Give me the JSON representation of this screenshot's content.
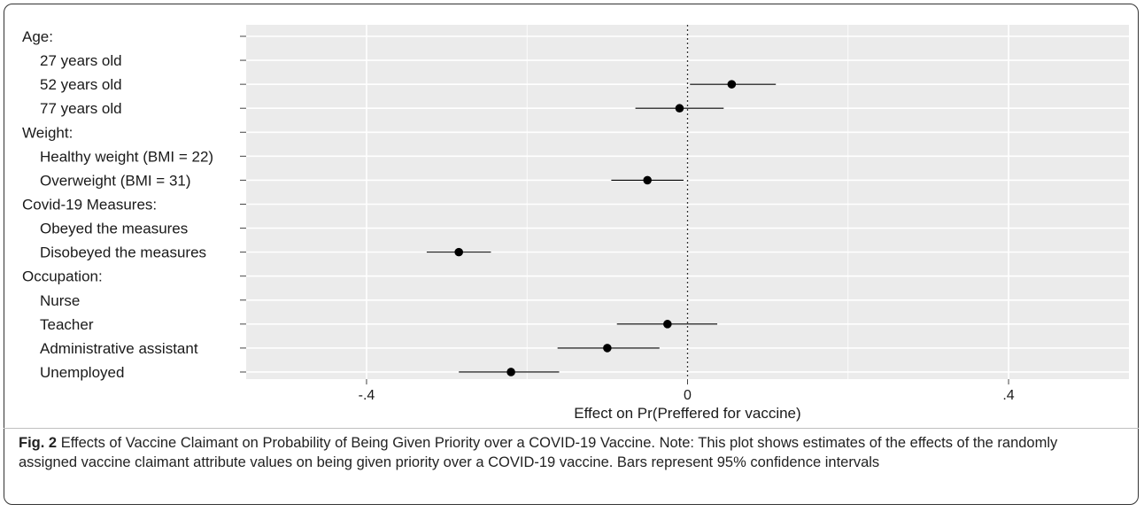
{
  "chart_data": {
    "type": "scatter",
    "subtype": "coefficient plot with 95% confidence intervals",
    "title": "",
    "xlabel": "Effect on Pr(Preffered for vaccine)",
    "ylabel": "",
    "xlim": [
      -0.55,
      0.55
    ],
    "xticks": [
      -0.4,
      0,
      0.4
    ],
    "xtick_labels": [
      "-.4",
      "0",
      ".4"
    ],
    "reference_line": {
      "x": 0,
      "style": "dotted"
    },
    "grid": true,
    "legend": "none",
    "colors": {
      "panel": "#ebebeb",
      "grid": "#ffffff",
      "point": "#000000",
      "reference": "#333333"
    },
    "rows": [
      {
        "label": "Age:",
        "header": true,
        "estimate": null,
        "ci": null
      },
      {
        "label": "27 years old",
        "header": false,
        "estimate": null,
        "ci": null
      },
      {
        "label": "52 years old",
        "header": false,
        "estimate": 0.055,
        "ci": [
          0.003,
          0.11
        ]
      },
      {
        "label": "77 years old",
        "header": false,
        "estimate": -0.01,
        "ci": [
          -0.065,
          0.045
        ]
      },
      {
        "label": "Weight:",
        "header": true,
        "estimate": null,
        "ci": null
      },
      {
        "label": "Healthy weight (BMI = 22)",
        "header": false,
        "estimate": null,
        "ci": null
      },
      {
        "label": "Overweight (BMI = 31)",
        "header": false,
        "estimate": -0.05,
        "ci": [
          -0.095,
          -0.005
        ]
      },
      {
        "label": "Covid-19 Measures:",
        "header": true,
        "estimate": null,
        "ci": null
      },
      {
        "label": "Obeyed the measures",
        "header": false,
        "estimate": null,
        "ci": null
      },
      {
        "label": "Disobeyed the measures",
        "header": false,
        "estimate": -0.285,
        "ci": [
          -0.325,
          -0.245
        ]
      },
      {
        "label": "Occupation:",
        "header": true,
        "estimate": null,
        "ci": null
      },
      {
        "label": "Nurse",
        "header": false,
        "estimate": null,
        "ci": null
      },
      {
        "label": "Teacher",
        "header": false,
        "estimate": -0.025,
        "ci": [
          -0.088,
          0.037
        ]
      },
      {
        "label": "Administrative assistant",
        "header": false,
        "estimate": -0.1,
        "ci": [
          -0.162,
          -0.035
        ]
      },
      {
        "label": "Unemployed",
        "header": false,
        "estimate": -0.22,
        "ci": [
          -0.285,
          -0.16
        ]
      }
    ]
  },
  "caption": {
    "fig_label": "Fig. 2",
    "text": "Effects of Vaccine Claimant on Probability of Being Given Priority over a COVID-19 Vaccine. Note: This plot shows estimates of the effects of the randomly assigned vaccine claimant attribute values on being given priority over a COVID-19 vaccine. Bars represent 95% confidence intervals"
  }
}
